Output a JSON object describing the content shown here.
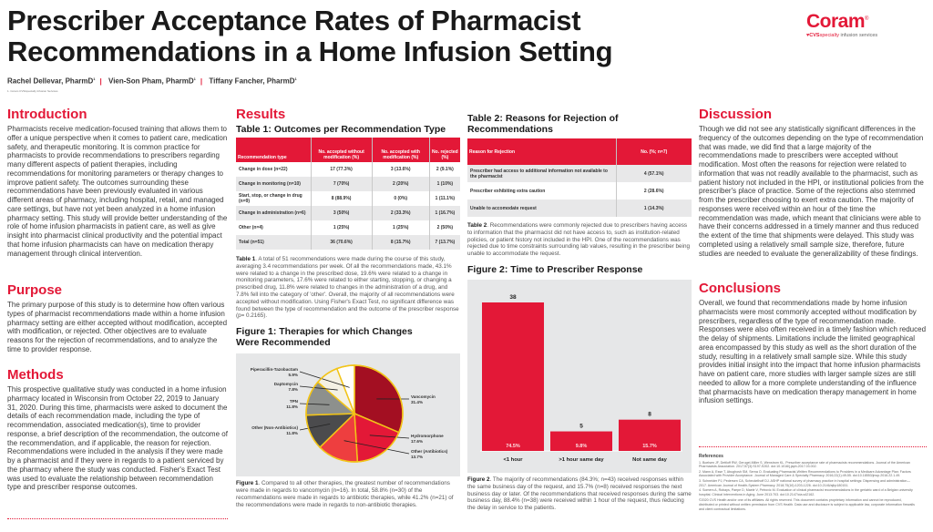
{
  "header": {
    "title": "Prescriber Acceptance Rates of Pharmacist Recommendations in a Home Infusion Setting",
    "authors": [
      "Rachel Dellevar, PharmD",
      "Vien-Son Pham, PharmD",
      "Tiffany Fancher, PharmD"
    ],
    "author_sup": "1",
    "affiliation": "1. Coram CVS/specialty Infusion Services"
  },
  "logo": {
    "name": "Coram",
    "reg": "®",
    "cvs": "♥CVS",
    "specialty": "specialty",
    "tagline": "infusion services"
  },
  "introduction": {
    "heading": "Introduction",
    "text": "Pharmacists receive medication-focused training that allows them to offer a unique perspective when it comes to patient care, medication safety, and therapeutic monitoring. It is common practice for pharmacists to provide recommendations to prescribers regarding many different aspects of patient therapies, including recommendations for monitoring parameters or therapy changes to improve patient safety. The outcomes surrounding these recommendations have been previously evaluated in various different areas of pharmacy, including hospital, retail, and managed care settings, but have not yet been analyzed in a home infusion pharmacy setting. This study will provide better understanding of the role of home infusion pharmacists in patient care, as well as give insight into pharmacist clinical productivity and the potential impact that home infusion pharmacists can have on medication therapy management through clinical intervention."
  },
  "purpose": {
    "heading": "Purpose",
    "text": "The primary purpose of this study is to determine how often various types of pharmacist recommendations made within a home infusion pharmacy setting are either accepted without modification, accepted with modification, or rejected. Other objectives are to evaluate reasons for the rejection of recommendations, and to analyze the time to provider response."
  },
  "methods": {
    "heading": "Methods",
    "text": "This prospective qualitative study was conducted in a home infusion pharmacy located in Wisconsin from October 22, 2019 to January 31, 2020. During this time, pharmacists were asked to document the details of each recommendation made, including the type of recommendation, associated medication(s), time to provider response, a brief description of the recommendation, the outcome of the recommendation, and if applicable, the reason for rejection. Recommendations were included in the analysis if they were made by a pharmacist and if they were in regards to a patient serviced by the pharmacy where the study was conducted. Fisher's Exact Test was used to evaluate the relationship between recommendation type and prescriber response outcomes."
  },
  "results": {
    "heading": "Results",
    "table1": {
      "title": "Table 1: Outcomes per Recommendation Type",
      "headers": [
        "Recommendation type",
        "No. accepted without modification (%)",
        "No. accepted with modification (%)",
        "No. rejected (%)"
      ],
      "rows": [
        [
          "Change in dose (n=22)",
          "17 (77.3%)",
          "3 (13.6%)",
          "2 (9.1%)"
        ],
        [
          "Change in monitoring (n=10)",
          "7 (70%)",
          "2 (20%)",
          "1 (10%)"
        ],
        [
          "Start, stop, or change in drug (n=9)",
          "8 (88.9%)",
          "0 (0%)",
          "1 (11.1%)"
        ],
        [
          "Change in administration (n=6)",
          "3 (50%)",
          "2 (33.3%)",
          "1 (16.7%)"
        ],
        [
          "Other (n=4)",
          "1 (25%)",
          "1 (25%)",
          "2 (50%)"
        ],
        [
          "Total (n=51)",
          "36 (70.6%)",
          "8 (15.7%)",
          "7 (13.7%)"
        ]
      ],
      "caption_label": "Table 1",
      "caption": ". A total of 51 recommendations were made during the course of this study, averaging 3.4 recommendations per week. Of all the recommendations made, 43.1% were related to a change in the prescribed dose, 19.6% were related to a change in monitoring parameters, 17.6% were related to either starting, stopping, or changing a prescribed drug, 11.8% were related to changes in the administration of a drug, and 7.8% fell into the category of 'other'. Overall, the majority of all recommendations were accepted without modification. Using Fisher's Exact Test, no significant difference was found between the type of recommendation and the outcome of the prescriber response (p= 0.2165)."
    },
    "figure1": {
      "title": "Figure 1: Therapies for which Changes Were Recommended",
      "caption_label": "Figure 1",
      "caption": ". Compared to all other therapies, the greatest number of recommendations were made in regards to vancomycin (n=16). In total, 58.8% (n=30) of the recommendations were made in regards to antibiotic therapies, while 41.2% (n=21) of the recommendations were made in regards to non-antibiotic therapies."
    },
    "table2": {
      "title": "Table 2: Reasons for Rejection of Recommendations",
      "headers": [
        "Reason for Rejection",
        "No. (%; n=7)"
      ],
      "rows": [
        [
          "Prescriber had access to additional information not available to the pharmacist",
          "4 (57.1%)"
        ],
        [
          "Prescriber exhibiting extra caution",
          "2 (28.6%)"
        ],
        [
          "Unable to accomodate request",
          "1 (14.3%)"
        ]
      ],
      "caption_label": "Table 2",
      "caption": ". Recommendations were commonly rejected due to prescribers having access to information that the pharmacist did not have access to, such as institution-related policies, or patient history not included in the HPI. One of the recommendations was rejected due to time constraints surrounding lab values, resulting in the prescriber being unable to accommodate the request."
    },
    "figure2": {
      "title": "Figure 2: Time to Prescriber Response",
      "caption_label": "Figure 2",
      "caption": ". The majority of recommendations (84.3%; n=43) received responses within the same business day of the request, and 15.7% (n=8) received responses the next business day or later. Of the recommendations that received responses during the same business day, 88.4% (n=38) were received within 1 hour of the request, thus reducing the delay in service to the patients."
    }
  },
  "chart_data": [
    {
      "type": "pie",
      "title": "Figure 1: Therapies for which Changes Were Recommended",
      "slices": [
        {
          "label": "Vancomycin",
          "value": 31.4,
          "value_label": "31.4%",
          "color": "#a30f22"
        },
        {
          "label": "Hydromorphone",
          "value": 17.6,
          "value_label": "17.6%",
          "color": "#e31837"
        },
        {
          "label": "Other (Antibiotics)",
          "value": 13.7,
          "value_label": "13.7%",
          "color": "#ee3e3f"
        },
        {
          "label": "Other (Non-Antibiotics)",
          "value": 11.8,
          "value_label": "11.8%",
          "color": "#4b4b4d"
        },
        {
          "label": "TPN",
          "value": 11.8,
          "value_label": "11.8%",
          "color": "#8d908d"
        },
        {
          "label": "Daptomycin",
          "value": 7.8,
          "value_label": "7.8%",
          "color": "#f4f1e4"
        },
        {
          "label": "Piperacillin-Tazobactam",
          "value": 5.9,
          "value_label": "5.9%",
          "color": "#ffffff"
        }
      ],
      "border_color": "#f2c418"
    },
    {
      "type": "bar",
      "title": "Figure 2: Time to Prescriber Response",
      "categories": [
        "<1 hour",
        ">1 hour same day",
        "Not same day"
      ],
      "values": [
        38,
        5,
        8
      ],
      "percent_labels": [
        "74.5%",
        "9.8%",
        "15.7%"
      ],
      "bar_color": "#e31837",
      "ylim": [
        0,
        38
      ],
      "grid": false
    }
  ],
  "discussion": {
    "heading": "Discussion",
    "text": "Though we did not see any statistically significant differences in the frequency of the outcomes depending on the type of recommendation that was made, we did find that a large majority of the recommendations made to prescribers were accepted without modification. Most often the reasons for rejection were related to information that was not readily available to the pharmacist, such as patient history not included in the HPI, or institutional policies from the prescriber's place of practice. Some of the rejections also stemmed from the prescriber choosing to exert extra caution. The majority of responses were received within an hour of the time the recommendation was made, which meant that clinicians were able to have their concerns addressed in a timely manner and thus reduced the extent of the time that shipments were delayed. This study was completed using a relatively small sample size, therefore, future studies are needed to evaluate the generalizability of these findings."
  },
  "conclusions": {
    "heading": "Conclusions",
    "text": "Overall, we found that recommendations made by home infusion pharmacists were most commonly accepted without modification by prescribers, regardless of the type of recommendation made. Responses were also often received in a timely fashion which reduced the delay of shipments. Limitations include the limited geographical area encompassed by this study as well as the short duration of the study, resulting in a relatively small sample size. While this study provides initial insight into the impact that home infusion pharmacists have on patient care, more studies with larger sample sizes are still needed to allow for a more complete understanding of the influence that pharmacists have on medication therapy management in home infusion settings."
  },
  "references": {
    "heading": "References",
    "items": [
      "1. Boelsen JF, Dettloff RW, Gerugel-Miller S, Wenstrom KL. Prescriber acceptance rate of pharmacists recommendations. Journal of the American Pharmacists Association. 2017;57(3):S197-S202. doi:10.1016/j.japh.2017.03.002.",
      "2. Mann A, Esse T, Abughosh SM, Serna O. Evaluating Pharmacist-Written Recommendations to Providers in a Medicare Advantage Plan: Factors Associated with Provider Acceptance. Journal of Managed Care & Specialty Pharmacy. 2016;22(1):49-55. doi:10.18553/jmcp.2016.22.1.49.",
      "3. Schneider PJ, Pedersen CA, Scheckelhoff DJ. ASHP national survey of pharmacy practice in hospital settings: Dispensing and administration—2017. American Journal of Health-System Pharmacy. 2018;75(16):1203-1226. doi:10.2146/ajhp180151.",
      "4. Somers A, Robays, Paepe D, Maele V, Petrovic M. Evaluation of clinical pharmacist recommendations in the geriatric ward of a Belgian university hospital. Clinical Interventions in Aging. June 2013:703. doi:10.2147/cia.s42162."
    ],
    "copyright": "©2020 CVS Health and/or one of its affiliates. All rights reserved. This document contains proprietary information and cannot be reproduced, distributed or printed without written permission from CVS Health. Data use and disclosure is subject to applicable law, corporate information firewalls and client contractual limitations."
  }
}
